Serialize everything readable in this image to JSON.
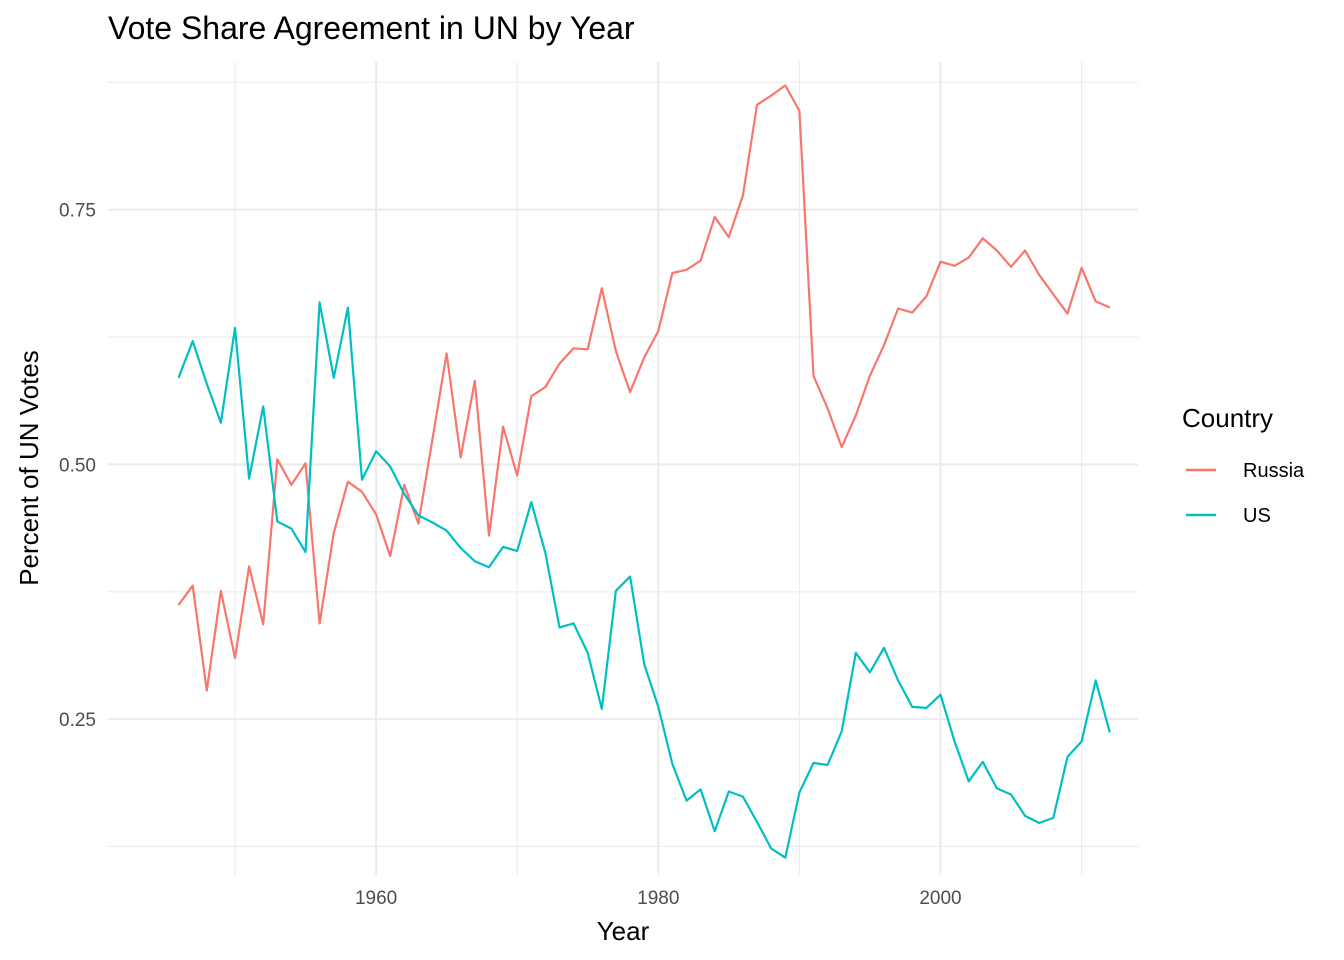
{
  "chart_data": {
    "type": "line",
    "title": "Vote Share Agreement in UN by Year",
    "xlabel": "Year",
    "ylabel": "Percent of UN Votes",
    "xlim": [
      1941,
      2014
    ],
    "ylim": [
      0.097,
      0.895
    ],
    "x_major_ticks": [
      1960,
      1980,
      2000
    ],
    "x_major_tick_labels": [
      "1960",
      "1980",
      "2000"
    ],
    "x_minor_ticks": [
      1950,
      1970,
      1990,
      2010
    ],
    "y_major_ticks": [
      0.25,
      0.5,
      0.75
    ],
    "y_major_tick_labels": [
      "0.25",
      "0.50",
      "0.75"
    ],
    "y_minor_ticks": [
      0.125,
      0.375,
      0.625,
      0.875
    ],
    "grid": true,
    "legend": {
      "title": "Country",
      "position": "right"
    },
    "x": [
      1946,
      1947,
      1948,
      1949,
      1950,
      1951,
      1952,
      1953,
      1954,
      1955,
      1956,
      1957,
      1958,
      1959,
      1960,
      1961,
      1962,
      1963,
      1964,
      1965,
      1966,
      1967,
      1968,
      1969,
      1970,
      1971,
      1972,
      1973,
      1974,
      1975,
      1976,
      1977,
      1978,
      1979,
      1980,
      1981,
      1982,
      1983,
      1984,
      1985,
      1986,
      1987,
      1988,
      1989,
      1990,
      1991,
      1992,
      1993,
      1994,
      1995,
      1996,
      1997,
      1998,
      1999,
      2000,
      2001,
      2002,
      2003,
      2004,
      2005,
      2006,
      2007,
      2008,
      2009,
      2010,
      2011,
      2012
    ],
    "series": [
      {
        "name": "Russia",
        "color": "#F8766D",
        "values": [
          0.362,
          0.381,
          0.278,
          0.376,
          0.31,
          0.4,
          0.343,
          0.505,
          0.48,
          0.501,
          0.344,
          0.433,
          0.483,
          0.473,
          0.451,
          0.41,
          0.48,
          0.442,
          0.525,
          0.609,
          0.507,
          0.582,
          0.43,
          0.537,
          0.489,
          0.567,
          0.576,
          0.599,
          0.614,
          0.613,
          0.673,
          0.611,
          0.571,
          0.605,
          0.631,
          0.688,
          0.691,
          0.7,
          0.743,
          0.723,
          0.764,
          0.853,
          0.862,
          0.872,
          0.847,
          0.587,
          0.555,
          0.517,
          0.548,
          0.587,
          0.617,
          0.653,
          0.649,
          0.665,
          0.699,
          0.695,
          0.703,
          0.722,
          0.71,
          0.694,
          0.71,
          0.686,
          0.667,
          0.648,
          0.693,
          0.66,
          0.654
        ]
      },
      {
        "name": "US",
        "color": "#00BFC4",
        "values": [
          0.585,
          0.621,
          0.579,
          0.541,
          0.634,
          0.486,
          0.557,
          0.444,
          0.437,
          0.414,
          0.659,
          0.585,
          0.654,
          0.485,
          0.513,
          0.498,
          0.471,
          0.45,
          0.443,
          0.435,
          0.418,
          0.405,
          0.399,
          0.419,
          0.415,
          0.463,
          0.413,
          0.34,
          0.344,
          0.315,
          0.26,
          0.376,
          0.39,
          0.304,
          0.262,
          0.206,
          0.17,
          0.181,
          0.14,
          0.179,
          0.174,
          0.149,
          0.123,
          0.114,
          0.178,
          0.207,
          0.205,
          0.238,
          0.315,
          0.296,
          0.32,
          0.288,
          0.262,
          0.261,
          0.274,
          0.228,
          0.189,
          0.208,
          0.182,
          0.176,
          0.155,
          0.148,
          0.153,
          0.213,
          0.228,
          0.288,
          0.237
        ]
      }
    ]
  }
}
